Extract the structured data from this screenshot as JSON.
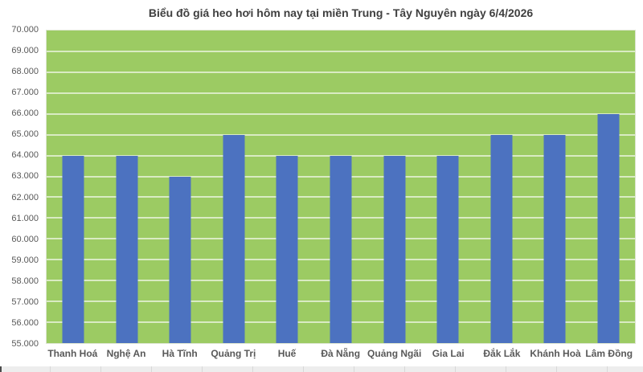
{
  "chart_data": {
    "type": "bar",
    "title": "Biểu đồ giá heo hơi hôm nay tại miền Trung - Tây Nguyên ngày 6/4/2026",
    "categories": [
      "Thanh Hoá",
      "Nghệ An",
      "Hà Tĩnh",
      "Quảng Trị",
      "Huế",
      "Đà Nẵng",
      "Quảng Ngãi",
      "Gia Lai",
      "Đắk Lắk",
      "Khánh Hoà",
      "Lâm Đồng"
    ],
    "values": [
      64000,
      64000,
      63000,
      65000,
      64000,
      64000,
      64000,
      64000,
      65000,
      65000,
      66000
    ],
    "value_labels": [
      "64.000",
      "64.000",
      "63.000",
      "65.000",
      "64.000",
      "64.000",
      "64.000",
      "64.000",
      "65.000",
      "65.000",
      "66.000"
    ],
    "xlabel": "",
    "ylabel": "",
    "ylim": [
      55000,
      70000
    ],
    "ytick_step": 1000,
    "ytick_labels": [
      "70.000",
      "69.000",
      "68.000",
      "67.000",
      "66.000",
      "65.000",
      "64.000",
      "63.000",
      "62.000",
      "61.000",
      "60.000",
      "59.000",
      "58.000",
      "57.000",
      "56.000",
      "55.000"
    ],
    "grid": true,
    "legend": false,
    "colors": {
      "plot_bg": "#9CCB63",
      "bar": "#4C72C0",
      "gridline": "rgba(255,255,255,0.62)",
      "title_text": "#3F3F3F",
      "axis_text": "#595959"
    }
  }
}
